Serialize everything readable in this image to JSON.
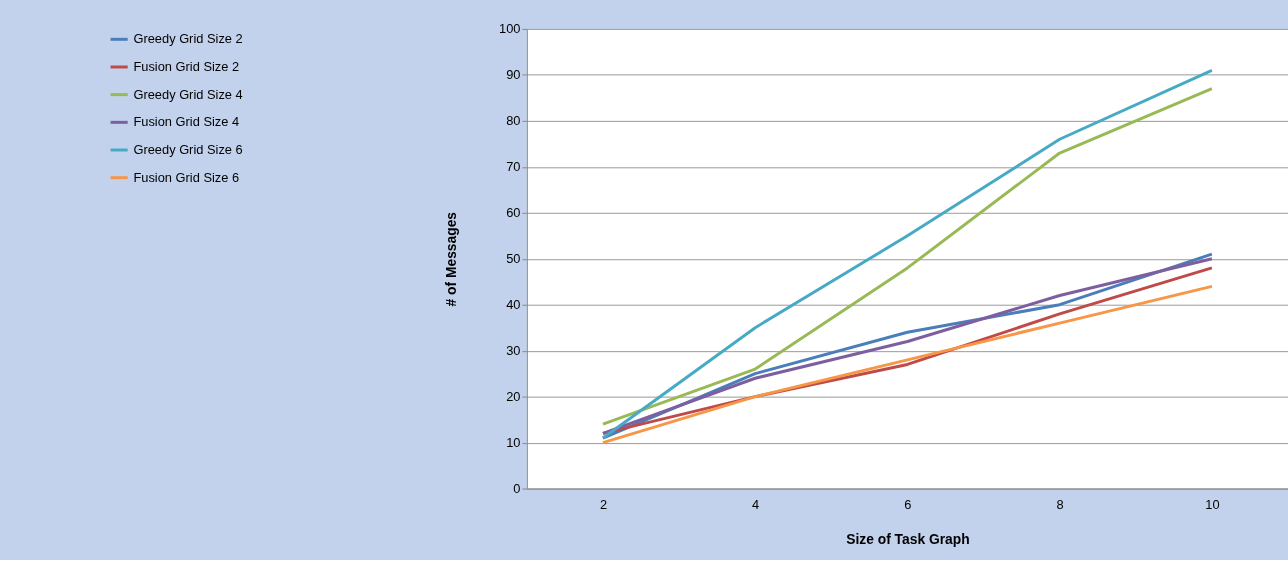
{
  "chart_data": {
    "type": "line",
    "xlabel": "Size of Task Graph",
    "ylabel": "# of Messages",
    "categories": [
      "2",
      "4",
      "6",
      "8",
      "10"
    ],
    "ylim": [
      0,
      100
    ],
    "yticks": [
      0,
      10,
      20,
      30,
      40,
      50,
      60,
      70,
      80,
      90,
      100
    ],
    "grid": "y",
    "legend": "left",
    "marker": "none",
    "line_style": "solid",
    "series": [
      {
        "name": "Greedy  Grid Size 2",
        "color": "#4a7ebb",
        "values": [
          11,
          25,
          34,
          40,
          51
        ]
      },
      {
        "name": "Fusion   Grid Size 2",
        "color": "#be4b48",
        "values": [
          12,
          20,
          27,
          38,
          48
        ]
      },
      {
        "name": "Greedy  Grid Size 4",
        "color": "#98b954",
        "values": [
          14,
          26,
          48,
          73,
          87
        ]
      },
      {
        "name": "Fusion   Grid Size 4",
        "color": "#7d5fa0",
        "values": [
          12,
          24,
          32,
          42,
          50
        ]
      },
      {
        "name": "Greedy  Grid Size 6",
        "color": "#46aac5",
        "values": [
          11,
          35,
          55,
          76,
          91
        ]
      },
      {
        "name": "Fusion   Grid Size 6",
        "color": "#f79646",
        "values": [
          10,
          20,
          28,
          36,
          44
        ]
      }
    ]
  }
}
